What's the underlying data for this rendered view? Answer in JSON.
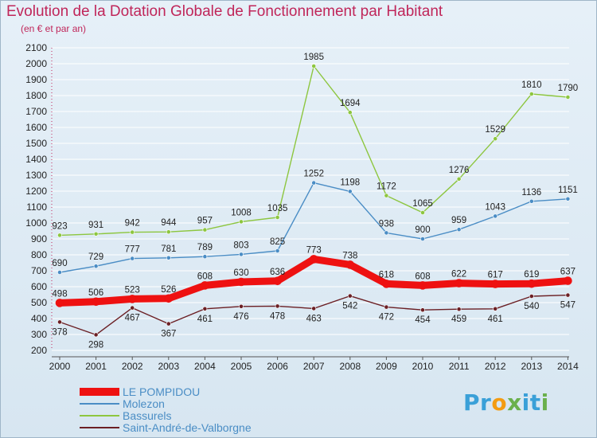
{
  "title": "Evolution de la Dotation Globale de Fonctionnement par Habitant",
  "subtitle": "(en € et par an)",
  "logo": {
    "text": "Proxiti",
    "letters": [
      {
        "ch": "P",
        "color": "#3aa0d8"
      },
      {
        "ch": "r",
        "color": "#3aa0d8"
      },
      {
        "ch": "o",
        "color": "#f39c12"
      },
      {
        "ch": "x",
        "color": "#6ab04c"
      },
      {
        "ch": "i",
        "color": "#3aa0d8"
      },
      {
        "ch": "t",
        "color": "#3aa0d8"
      },
      {
        "ch": "i",
        "color": "#6ab04c"
      }
    ]
  },
  "chart_data": {
    "type": "line",
    "title": "Evolution de la Dotation Globale de Fonctionnement par Habitant",
    "subtitle": "(en € et par an)",
    "xlabel": "",
    "ylabel": "",
    "x": [
      "2000",
      "2001",
      "2002",
      "2003",
      "2004",
      "2005",
      "2006",
      "2007",
      "2008",
      "2009",
      "2010",
      "2011",
      "2012",
      "2013",
      "2014"
    ],
    "ylim": [
      200,
      2100
    ],
    "yticks": [
      200,
      300,
      400,
      500,
      600,
      700,
      800,
      900,
      1000,
      1100,
      1200,
      1300,
      1400,
      1500,
      1600,
      1700,
      1800,
      1900,
      2000,
      2100
    ],
    "grid": true,
    "legend_position": "bottom-left",
    "series": [
      {
        "name": "Bassurels",
        "color": "#8dc63f",
        "width": 1.4,
        "values": [
          923,
          931,
          942,
          944,
          957,
          1008,
          1035,
          1985,
          1694,
          1172,
          1065,
          1276,
          1529,
          1810,
          1790
        ]
      },
      {
        "name": "Molezon",
        "color": "#4a8dc5",
        "width": 1.4,
        "values": [
          690,
          729,
          777,
          781,
          789,
          803,
          825,
          1252,
          1198,
          938,
          900,
          959,
          1043,
          1136,
          1151
        ]
      },
      {
        "name": "Saint-André-de-Valborgne",
        "color": "#6b1f24",
        "width": 1.4,
        "values": [
          378,
          298,
          467,
          367,
          461,
          476,
          478,
          463,
          542,
          472,
          454,
          459,
          461,
          540,
          547
        ]
      },
      {
        "name": "LE POMPIDOU",
        "color": "#ee1111",
        "width": 9,
        "values": [
          498,
          506,
          523,
          526,
          608,
          630,
          636,
          773,
          738,
          618,
          608,
          622,
          617,
          619,
          637
        ]
      }
    ],
    "legend_order": [
      "LE POMPIDOU",
      "Molezon",
      "Bassurels",
      "Saint-André-de-Valborgne"
    ]
  }
}
